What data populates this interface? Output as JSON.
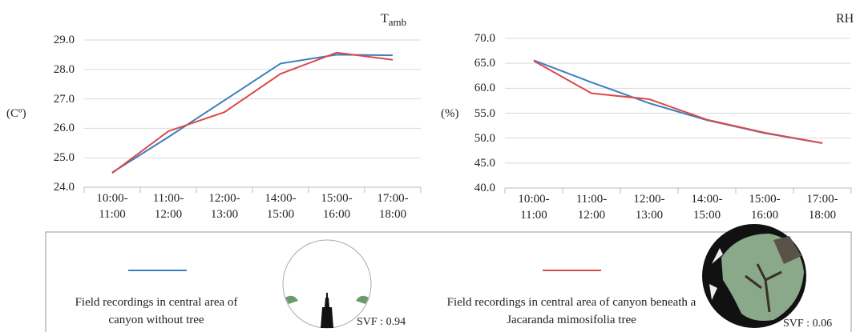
{
  "chart_data": [
    {
      "type": "line",
      "title": "T",
      "title_subscript": "amb",
      "y_label": "(Cº)",
      "categories": [
        "10:00-\n11:00",
        "11:00-\n12:00",
        "12:00-\n13:00",
        "14:00-\n15:00",
        "15:00-\n16:00",
        "17:00-\n18:00"
      ],
      "series": [
        {
          "name": "Field recordings in central area of canyon without tree",
          "color": "#3a7fc1",
          "values": [
            24.5,
            25.7,
            26.95,
            28.2,
            28.5,
            28.48
          ]
        },
        {
          "name": "Field recordings in central area of canyon beneath a Jacaranda mimosifolia tree",
          "color": "#d94a4a",
          "values": [
            24.48,
            25.9,
            26.55,
            27.85,
            28.57,
            28.33
          ]
        }
      ],
      "ylim": [
        24,
        29
      ],
      "yticks": [
        {
          "value": 24,
          "label": "24.0"
        },
        {
          "value": 25,
          "label": "25.0"
        },
        {
          "value": 26,
          "label": "26.0"
        },
        {
          "value": 27,
          "label": "27.0"
        },
        {
          "value": 28,
          "label": "28.0"
        },
        {
          "value": 29,
          "label": "29.0"
        }
      ],
      "grid": true
    },
    {
      "type": "line",
      "title": "RH",
      "y_label": "(%)",
      "categories": [
        "10:00-\n11:00",
        "11:00-\n12:00",
        "12:00-\n13:00",
        "14:00-\n15:00",
        "15:00-\n16:00",
        "17:00-\n18:00"
      ],
      "series": [
        {
          "color": "#3a7fc1",
          "values": [
            65.6,
            61.2,
            57.0,
            53.6,
            51.0,
            49.0
          ]
        },
        {
          "color": "#d94a4a",
          "values": [
            65.5,
            59.0,
            57.8,
            53.7,
            51.1,
            49.0
          ]
        }
      ],
      "ylim": [
        40,
        70
      ],
      "yticks": [
        {
          "value": 40,
          "label": "40.0"
        },
        {
          "value": 45,
          "label": "45.0"
        },
        {
          "value": 50,
          "label": "50.0"
        },
        {
          "value": 55,
          "label": "55.0"
        },
        {
          "value": 60,
          "label": "60.0"
        },
        {
          "value": 65,
          "label": "65.0"
        },
        {
          "value": 70,
          "label": "70.0"
        }
      ],
      "grid": true
    }
  ],
  "legend": {
    "svf": [
      "SVF : 0.94",
      "SVF : 0.06"
    ]
  }
}
